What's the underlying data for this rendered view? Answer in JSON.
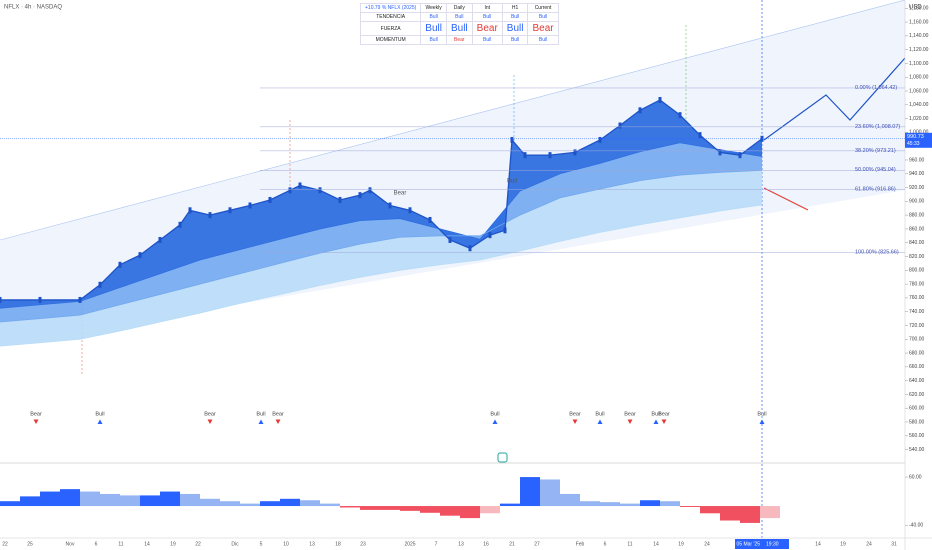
{
  "header": {
    "symbol": "NFLX · 4h · NASDAQ",
    "currency": "USD"
  },
  "table": {
    "columns": [
      "+10.79 % NFLX (2025)",
      "Weekly",
      "Daily",
      "Int",
      "H1",
      "Current"
    ],
    "rows": [
      [
        "TENDENCIA",
        "Bull",
        "Bull",
        "Bull",
        "Bull",
        "Bull"
      ],
      [
        "FUERZA",
        "Bull",
        "Bull",
        "Bear",
        "Bull",
        "Bear"
      ],
      [
        "MOMENTUM",
        "Bull",
        "Bear",
        "Bull",
        "Bull",
        "Bull"
      ]
    ]
  },
  "chart_data": [
    {
      "type": "line",
      "x": [
        0,
        8,
        16,
        20,
        24,
        28,
        32,
        36,
        38,
        42,
        46,
        50,
        54,
        58,
        60,
        64,
        68,
        72,
        74,
        78,
        82,
        86,
        90,
        94,
        98,
        101,
        102.4,
        105,
        110,
        115,
        120,
        124,
        128,
        132,
        136,
        140,
        144,
        148,
        152.4
      ],
      "series": [
        {
          "color": "#1e53c8",
          "values": [
            757,
            757,
            757,
            779,
            808,
            822,
            844,
            866,
            887,
            880,
            887,
            894,
            902,
            916,
            923,
            916,
            902,
            909,
            916,
            894,
            887,
            873,
            844,
            832,
            851,
            858,
            989,
            967,
            967,
            971,
            989,
            1010,
            1032,
            1047,
            1025,
            996,
            971,
            967,
            990.73
          ]
        }
      ],
      "bands": {
        "x": [
          0,
          8,
          16,
          24,
          32,
          40,
          48,
          56,
          64,
          72,
          80,
          88,
          96,
          104,
          112,
          120,
          128,
          136,
          144,
          152.4
        ],
        "series": [
          {
            "color": "#2f6fe0",
            "values": [
              745,
              750,
              755,
              775,
              795,
              815,
              830,
              845,
              860,
              872,
              875,
              860,
              845,
              915,
              940,
              955,
              972,
              985,
              975,
              965
            ]
          },
          {
            "color": "#72a9ef",
            "values": [
              725,
              730,
              735,
              750,
              765,
              780,
              795,
              810,
              825,
              838,
              848,
              850,
              850,
              880,
              905,
              918,
              930,
              938,
              942,
              945
            ]
          },
          {
            "color": "#b8dcf8",
            "values": [
              690,
              695,
              700,
              712,
              725,
              738,
              752,
              765,
              778,
              790,
              800,
              808,
              815,
              828,
              842,
              855,
              866,
              876,
              886,
              895
            ]
          }
        ]
      },
      "xlim": [
        0,
        181
      ],
      "xticks": [
        {
          "value": 1,
          "label": "22"
        },
        {
          "value": 6,
          "label": "25"
        },
        {
          "value": 14,
          "label": "Nov"
        },
        {
          "value": 19.2,
          "label": "6"
        },
        {
          "value": 24.2,
          "label": "11"
        },
        {
          "value": 29.4,
          "label": "14"
        },
        {
          "value": 34.6,
          "label": "19"
        },
        {
          "value": 39.6,
          "label": "22"
        },
        {
          "value": 47,
          "label": "Dic"
        },
        {
          "value": 52.2,
          "label": "5"
        },
        {
          "value": 57.2,
          "label": "10"
        },
        {
          "value": 62.4,
          "label": "13"
        },
        {
          "value": 67.6,
          "label": "18"
        },
        {
          "value": 72.6,
          "label": "23"
        },
        {
          "value": 82,
          "label": "2025"
        },
        {
          "value": 87.2,
          "label": "7"
        },
        {
          "value": 92.2,
          "label": "13"
        },
        {
          "value": 97.2,
          "label": "16"
        },
        {
          "value": 102.4,
          "label": "21"
        },
        {
          "value": 107.4,
          "label": "27"
        },
        {
          "value": 116,
          "label": "Feb"
        },
        {
          "value": 121,
          "label": "6"
        },
        {
          "value": 126,
          "label": "11"
        },
        {
          "value": 131.2,
          "label": "14"
        },
        {
          "value": 136.2,
          "label": "19"
        },
        {
          "value": 141.4,
          "label": "24"
        },
        {
          "value": 163.6,
          "label": "14"
        },
        {
          "value": 168.6,
          "label": "19"
        },
        {
          "value": 173.8,
          "label": "24"
        },
        {
          "value": 178.8,
          "label": "31"
        }
      ],
      "ylim": [
        522,
        1192
      ],
      "yticks": [
        {
          "value": 1180,
          "label": "1,180.00"
        },
        {
          "value": 1160,
          "label": "1,160.00"
        },
        {
          "value": 1140,
          "label": "1,140.00"
        },
        {
          "value": 1120,
          "label": "1,120.00"
        },
        {
          "value": 1100,
          "label": "1,100.00"
        },
        {
          "value": 1080,
          "label": "1,080.00"
        },
        {
          "value": 1060,
          "label": "1,060.00"
        },
        {
          "value": 1040,
          "label": "1,040.00"
        },
        {
          "value": 1020,
          "label": "1,020.00"
        },
        {
          "value": 1000,
          "label": "1,000.00"
        },
        {
          "value": 980,
          "label": "980.00"
        },
        {
          "value": 960,
          "label": "960.00"
        },
        {
          "value": 940,
          "label": "940.00"
        },
        {
          "value": 920,
          "label": "920.00"
        },
        {
          "value": 900,
          "label": "900.00"
        },
        {
          "value": 880,
          "label": "880.00"
        },
        {
          "value": 860,
          "label": "860.00"
        },
        {
          "value": 840,
          "label": "840.00"
        },
        {
          "value": 820,
          "label": "820.00"
        },
        {
          "value": 800,
          "label": "800.00"
        },
        {
          "value": 780,
          "label": "780.00"
        },
        {
          "value": 760,
          "label": "760.00"
        },
        {
          "value": 740,
          "label": "740.00"
        },
        {
          "value": 720,
          "label": "720.00"
        },
        {
          "value": 700,
          "label": "700.00"
        },
        {
          "value": 680,
          "label": "680.00"
        },
        {
          "value": 660,
          "label": "660.00"
        },
        {
          "value": 640,
          "label": "640.00"
        },
        {
          "value": 620,
          "label": "620.00"
        },
        {
          "value": 600,
          "label": "600.00"
        },
        {
          "value": 580,
          "label": "580.00"
        },
        {
          "value": 560,
          "label": "560.00"
        },
        {
          "value": 540,
          "label": "540.00"
        }
      ],
      "last_price": {
        "value": 990.73,
        "label": "990.73",
        "timer": "45:33"
      },
      "fib_levels": [
        {
          "value": 1064.42,
          "label": "0.00% (1,064.42)"
        },
        {
          "value": 1008.07,
          "label": "23.60% (1,008.07)"
        },
        {
          "value": 973.21,
          "label": "38.20% (973.21)"
        },
        {
          "value": 945.04,
          "label": "50.00% (945.04)"
        },
        {
          "value": 916.86,
          "label": "61.80% (916.86)"
        },
        {
          "value": 825.66,
          "label": "100.00% (825.66)"
        }
      ],
      "annotations": [
        "Bear",
        "Bull"
      ],
      "signals": [
        {
          "x": 7.2,
          "label": "Bear"
        },
        {
          "x": 20,
          "label": "Bull"
        },
        {
          "x": 42,
          "label": "Bear"
        },
        {
          "x": 52.2,
          "label": "Bull"
        },
        {
          "x": 55.6,
          "label": "Bear"
        },
        {
          "x": 99,
          "label": "Bull"
        },
        {
          "x": 115,
          "label": "Bear"
        },
        {
          "x": 120,
          "label": "Bull"
        },
        {
          "x": 126,
          "label": "Bear"
        },
        {
          "x": 131.2,
          "label": "Bull"
        },
        {
          "x": 132.8,
          "label": "Bear"
        },
        {
          "x": 152.4,
          "label": "Bull"
        }
      ],
      "signal_colors": {
        "Bull": "#2962ff",
        "Bear": "#e53935"
      },
      "cursor": {
        "x": 152.4,
        "date": "mié 05 Mar '25",
        "time": "19:30"
      }
    },
    {
      "type": "bar",
      "x": [
        0,
        4,
        8,
        12,
        16,
        20,
        24,
        28,
        32,
        36,
        40,
        44,
        48,
        52,
        56,
        60,
        64,
        68,
        72,
        76,
        80,
        84,
        88,
        92,
        96,
        100,
        104,
        108,
        112,
        116,
        120,
        124,
        128,
        132,
        136,
        140,
        144,
        148,
        152
      ],
      "values": [
        10,
        20,
        30,
        35,
        30,
        25,
        22,
        22,
        30,
        25,
        15,
        10,
        5,
        10,
        15,
        12,
        5,
        -3,
        -8,
        -8,
        -10,
        -14,
        -20,
        -25,
        -15,
        5,
        60,
        55,
        25,
        10,
        8,
        5,
        12,
        10,
        -2,
        -15,
        -30,
        -35,
        -25
      ],
      "colors": {
        "up_rising": "#2962ff",
        "up_falling": "#94b4f3",
        "down_falling": "#f0505f",
        "down_rising": "#f7b9be"
      },
      "ylim": [
        -60,
        85
      ],
      "yticks": [
        {
          "value": 60,
          "label": "60.00"
        },
        {
          "value": -40,
          "label": "-40.00"
        }
      ]
    }
  ]
}
